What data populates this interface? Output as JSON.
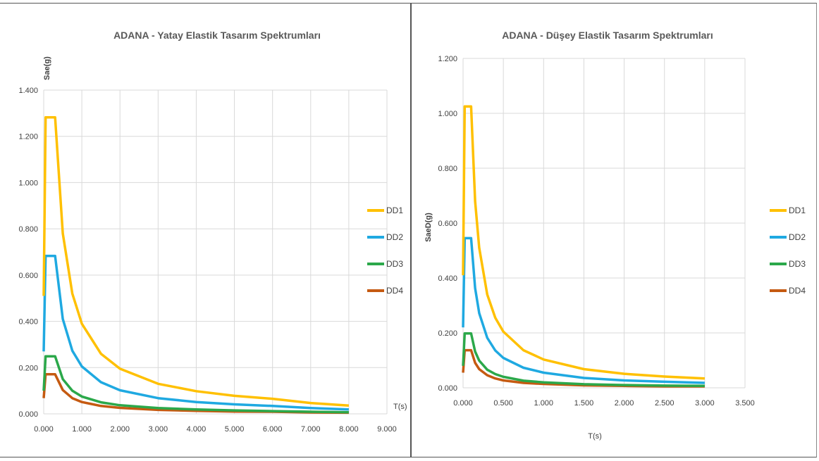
{
  "chart_data": [
    {
      "type": "line",
      "title": "ADANA -  Yatay Elastik Tasarım Spektrumları",
      "xlabel": "T(s)",
      "ylabel": "Sae(g)",
      "xlim": [
        0,
        9
      ],
      "ylim": [
        0,
        1.4
      ],
      "x_ticks": [
        "0.000",
        "1.000",
        "2.000",
        "3.000",
        "4.000",
        "5.000",
        "6.000",
        "7.000",
        "8.000",
        "9.000"
      ],
      "y_ticks": [
        "0.000",
        "0.200",
        "0.400",
        "0.600",
        "0.800",
        "1.000",
        "1.200",
        "1.400"
      ],
      "x_tick_values": [
        0,
        1,
        2,
        3,
        4,
        5,
        6,
        7,
        8,
        9
      ],
      "y_tick_values": [
        0,
        0.2,
        0.4,
        0.6,
        0.8,
        1.0,
        1.2,
        1.4
      ],
      "grid": true,
      "legend_position": "right",
      "series": [
        {
          "name": "DD1",
          "color": "#FFC000",
          "values": [
            [
              0,
              0.51
            ],
            [
              0.05,
              1.282
            ],
            [
              0.3,
              1.282
            ],
            [
              0.5,
              0.78
            ],
            [
              0.75,
              0.52
            ],
            [
              1.0,
              0.39
            ],
            [
              1.5,
              0.26
            ],
            [
              2,
              0.195
            ],
            [
              3,
              0.13
            ],
            [
              4,
              0.098
            ],
            [
              5,
              0.078
            ],
            [
              6,
              0.065
            ],
            [
              7,
              0.047
            ],
            [
              8,
              0.036
            ]
          ]
        },
        {
          "name": "DD2",
          "color": "#1FA9E1",
          "values": [
            [
              0,
              0.27
            ],
            [
              0.05,
              0.683
            ],
            [
              0.3,
              0.683
            ],
            [
              0.5,
              0.41
            ],
            [
              0.75,
              0.273
            ],
            [
              1.0,
              0.205
            ],
            [
              1.5,
              0.137
            ],
            [
              2,
              0.102
            ],
            [
              3,
              0.068
            ],
            [
              4,
              0.051
            ],
            [
              5,
              0.041
            ],
            [
              6,
              0.034
            ],
            [
              7,
              0.025
            ],
            [
              8,
              0.019
            ]
          ]
        },
        {
          "name": "DD3",
          "color": "#2BA84A",
          "values": [
            [
              0,
              0.1
            ],
            [
              0.05,
              0.249
            ],
            [
              0.3,
              0.249
            ],
            [
              0.5,
              0.15
            ],
            [
              0.75,
              0.1
            ],
            [
              1.0,
              0.075
            ],
            [
              1.5,
              0.05
            ],
            [
              2,
              0.037
            ],
            [
              3,
              0.025
            ],
            [
              4,
              0.019
            ],
            [
              5,
              0.015
            ],
            [
              6,
              0.012
            ],
            [
              7,
              0.009
            ],
            [
              8,
              0.007
            ]
          ]
        },
        {
          "name": "DD4",
          "color": "#C55A11",
          "values": [
            [
              0,
              0.068
            ],
            [
              0.05,
              0.171
            ],
            [
              0.3,
              0.171
            ],
            [
              0.5,
              0.103
            ],
            [
              0.75,
              0.068
            ],
            [
              1.0,
              0.051
            ],
            [
              1.5,
              0.034
            ],
            [
              2,
              0.026
            ],
            [
              3,
              0.017
            ],
            [
              4,
              0.013
            ],
            [
              5,
              0.01
            ],
            [
              6,
              0.009
            ],
            [
              7,
              0.006
            ],
            [
              8,
              0.005
            ]
          ]
        }
      ]
    },
    {
      "type": "line",
      "title": "ADANA - Düşey Elastik Tasarım Spektrumları",
      "xlabel": "T(s)",
      "ylabel": "SaeD(g)",
      "xlim": [
        0,
        3.5
      ],
      "ylim": [
        0,
        1.2
      ],
      "x_ticks": [
        "0.000",
        "0.500",
        "1.000",
        "1.500",
        "2.000",
        "2.500",
        "3.000",
        "3.500"
      ],
      "y_ticks": [
        "0.000",
        "0.200",
        "0.400",
        "0.600",
        "0.800",
        "1.000",
        "1.200"
      ],
      "x_tick_values": [
        0,
        0.5,
        1.0,
        1.5,
        2.0,
        2.5,
        3.0,
        3.5
      ],
      "y_tick_values": [
        0,
        0.2,
        0.4,
        0.6,
        0.8,
        1.0,
        1.2
      ],
      "grid": true,
      "legend_position": "right",
      "series": [
        {
          "name": "DD1",
          "color": "#FFC000",
          "values": [
            [
              0,
              0.41
            ],
            [
              0.02,
              1.025
            ],
            [
              0.1,
              1.025
            ],
            [
              0.15,
              0.68
            ],
            [
              0.2,
              0.51
            ],
            [
              0.3,
              0.34
            ],
            [
              0.4,
              0.255
            ],
            [
              0.5,
              0.205
            ],
            [
              0.75,
              0.137
            ],
            [
              1.0,
              0.103
            ],
            [
              1.5,
              0.068
            ],
            [
              2.0,
              0.051
            ],
            [
              2.5,
              0.041
            ],
            [
              3.0,
              0.034
            ]
          ]
        },
        {
          "name": "DD2",
          "color": "#1FA9E1",
          "values": [
            [
              0,
              0.22
            ],
            [
              0.02,
              0.545
            ],
            [
              0.1,
              0.545
            ],
            [
              0.15,
              0.363
            ],
            [
              0.2,
              0.272
            ],
            [
              0.3,
              0.182
            ],
            [
              0.4,
              0.136
            ],
            [
              0.5,
              0.109
            ],
            [
              0.75,
              0.073
            ],
            [
              1.0,
              0.055
            ],
            [
              1.5,
              0.036
            ],
            [
              2.0,
              0.027
            ],
            [
              2.5,
              0.022
            ],
            [
              3.0,
              0.018
            ]
          ]
        },
        {
          "name": "DD3",
          "color": "#2BA84A",
          "values": [
            [
              0,
              0.08
            ],
            [
              0.02,
              0.198
            ],
            [
              0.1,
              0.198
            ],
            [
              0.15,
              0.132
            ],
            [
              0.2,
              0.099
            ],
            [
              0.3,
              0.066
            ],
            [
              0.4,
              0.05
            ],
            [
              0.5,
              0.04
            ],
            [
              0.75,
              0.026
            ],
            [
              1.0,
              0.02
            ],
            [
              1.5,
              0.013
            ],
            [
              2.0,
              0.01
            ],
            [
              2.5,
              0.008
            ],
            [
              3.0,
              0.007
            ]
          ]
        },
        {
          "name": "DD4",
          "color": "#C55A11",
          "values": [
            [
              0,
              0.055
            ],
            [
              0.02,
              0.137
            ],
            [
              0.1,
              0.137
            ],
            [
              0.15,
              0.091
            ],
            [
              0.2,
              0.068
            ],
            [
              0.3,
              0.046
            ],
            [
              0.4,
              0.034
            ],
            [
              0.5,
              0.027
            ],
            [
              0.75,
              0.018
            ],
            [
              1.0,
              0.014
            ],
            [
              1.5,
              0.009
            ],
            [
              2.0,
              0.007
            ],
            [
              2.5,
              0.005
            ],
            [
              3.0,
              0.005
            ]
          ]
        }
      ]
    }
  ]
}
